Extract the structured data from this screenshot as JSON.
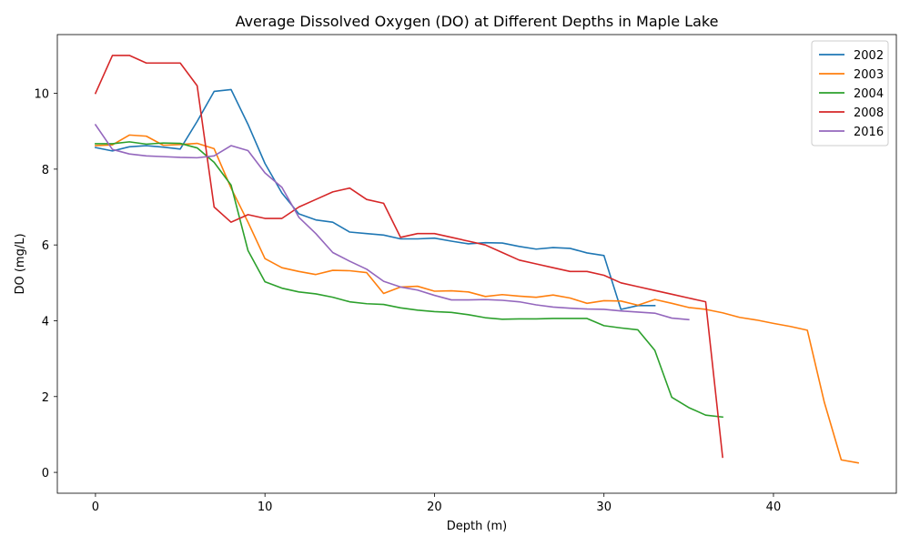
{
  "chart_data": {
    "type": "line",
    "title": "Average Dissolved Oxygen (DO) at Different Depths in Maple Lake",
    "xlabel": "Depth (m)",
    "ylabel": "DO (mg/L)",
    "xlim": [
      -2.25,
      47.25
    ],
    "ylim": [
      -0.55,
      11.55
    ],
    "xticks": [
      0,
      10,
      20,
      30,
      40
    ],
    "yticks": [
      0,
      2,
      4,
      6,
      8,
      10
    ],
    "grid": false,
    "legend_position": "top-right",
    "series": [
      {
        "name": "2002",
        "color": "#1f77b4",
        "x": [
          0,
          1,
          2,
          3,
          4,
          5,
          6,
          7,
          8,
          9,
          10,
          11,
          12,
          13,
          14,
          15,
          16,
          17,
          18,
          19,
          20,
          21,
          22,
          23,
          24,
          25,
          26,
          27,
          28,
          29,
          30,
          31,
          32,
          33
        ],
        "y": [
          8.57,
          8.48,
          8.59,
          8.62,
          8.58,
          8.53,
          9.26,
          10.05,
          10.1,
          9.18,
          8.15,
          7.37,
          6.82,
          6.66,
          6.6,
          6.34,
          6.3,
          6.26,
          6.16,
          6.16,
          6.18,
          6.1,
          6.03,
          6.06,
          6.05,
          5.96,
          5.89,
          5.93,
          5.91,
          5.79,
          5.72,
          4.3,
          4.4,
          4.4
        ]
      },
      {
        "name": "2003",
        "color": "#ff7f0e",
        "x": [
          0,
          1,
          2,
          3,
          4,
          5,
          6,
          7,
          8,
          9,
          10,
          11,
          12,
          13,
          14,
          15,
          16,
          17,
          18,
          19,
          20,
          21,
          22,
          23,
          24,
          25,
          26,
          27,
          28,
          29,
          30,
          31,
          32,
          33,
          34,
          35,
          36,
          37,
          38,
          39,
          40,
          41,
          42,
          43,
          44,
          45
        ],
        "y": [
          8.62,
          8.64,
          8.9,
          8.87,
          8.63,
          8.65,
          8.68,
          8.54,
          7.5,
          6.6,
          5.64,
          5.4,
          5.3,
          5.22,
          5.33,
          5.32,
          5.27,
          4.72,
          4.89,
          4.91,
          4.78,
          4.79,
          4.76,
          4.64,
          4.69,
          4.65,
          4.62,
          4.68,
          4.6,
          4.46,
          4.53,
          4.52,
          4.41,
          4.56,
          4.46,
          4.35,
          4.3,
          4.21,
          4.09,
          4.02,
          3.93,
          3.85,
          3.75,
          1.85,
          0.33,
          0.25
        ]
      },
      {
        "name": "2004",
        "color": "#2ca02c",
        "x": [
          0,
          1,
          2,
          3,
          4,
          5,
          6,
          7,
          8,
          9,
          10,
          11,
          12,
          13,
          14,
          15,
          16,
          17,
          18,
          19,
          20,
          21,
          22,
          23,
          24,
          25,
          26,
          27,
          28,
          29,
          30,
          31,
          32,
          33,
          34,
          35,
          36,
          37
        ],
        "y": [
          8.67,
          8.67,
          8.72,
          8.66,
          8.69,
          8.68,
          8.56,
          8.18,
          7.58,
          5.85,
          5.03,
          4.86,
          4.76,
          4.71,
          4.62,
          4.5,
          4.45,
          4.43,
          4.34,
          4.28,
          4.24,
          4.22,
          4.16,
          4.08,
          4.04,
          4.05,
          4.05,
          4.06,
          4.06,
          4.06,
          3.87,
          3.81,
          3.76,
          3.22,
          1.98,
          1.71,
          1.51,
          1.46
        ]
      },
      {
        "name": "2008",
        "color": "#d62728",
        "x": [
          0,
          1,
          2,
          3,
          4,
          5,
          6,
          7,
          8,
          9,
          10,
          11,
          12,
          13,
          14,
          15,
          16,
          17,
          18,
          19,
          20,
          21,
          22,
          23,
          24,
          25,
          26,
          27,
          28,
          29,
          30,
          31,
          32,
          33,
          34,
          35,
          36,
          37
        ],
        "y": [
          10.0,
          11.0,
          11.0,
          10.8,
          10.8,
          10.8,
          10.2,
          7.0,
          6.6,
          6.8,
          6.7,
          6.7,
          7.0,
          7.2,
          7.4,
          7.5,
          7.2,
          7.1,
          6.2,
          6.3,
          6.3,
          6.2,
          6.1,
          6.0,
          5.8,
          5.6,
          5.5,
          5.4,
          5.3,
          5.3,
          5.2,
          5.0,
          4.9,
          4.8,
          4.7,
          4.6,
          4.5,
          0.4
        ]
      },
      {
        "name": "2016",
        "color": "#9467bd",
        "x": [
          0,
          1,
          2,
          3,
          4,
          5,
          6,
          7,
          8,
          9,
          10,
          11,
          12,
          13,
          14,
          15,
          16,
          17,
          18,
          19,
          20,
          21,
          22,
          23,
          24,
          25,
          26,
          27,
          28,
          29,
          30,
          31,
          32,
          33,
          34,
          35
        ],
        "y": [
          9.17,
          8.52,
          8.4,
          8.35,
          8.33,
          8.31,
          8.3,
          8.35,
          8.62,
          8.49,
          7.9,
          7.52,
          6.73,
          6.3,
          5.8,
          5.57,
          5.36,
          5.04,
          4.89,
          4.81,
          4.67,
          4.55,
          4.55,
          4.56,
          4.54,
          4.5,
          4.42,
          4.36,
          4.33,
          4.31,
          4.3,
          4.26,
          4.23,
          4.2,
          4.07,
          4.03
        ]
      }
    ]
  }
}
